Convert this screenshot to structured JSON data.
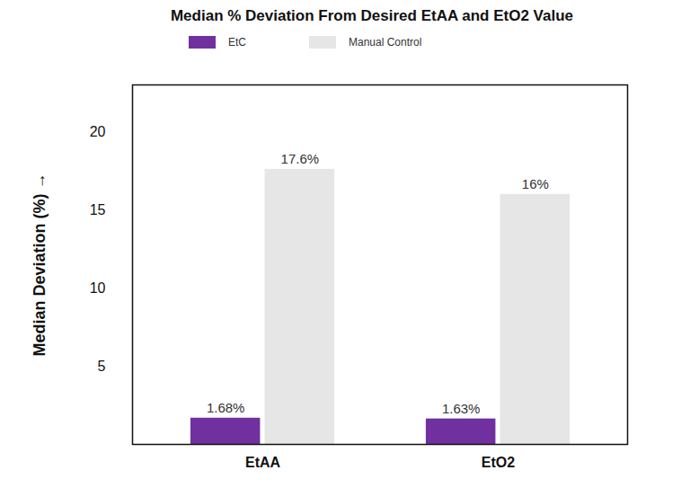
{
  "chart_data": {
    "type": "bar",
    "title": "Median % Deviation From Desired EtAA and EtO2 Value",
    "categories": [
      "EtAA",
      "EtO2"
    ],
    "series": [
      {
        "name": "EtC",
        "color": "#7030a0",
        "values": [
          1.68,
          1.63
        ],
        "value_labels": [
          "1.68%",
          "1.63%"
        ]
      },
      {
        "name": "Manual Control",
        "color": "#e6e6e6",
        "values": [
          17.6,
          16
        ],
        "value_labels": [
          "17.6%",
          "16%"
        ]
      }
    ],
    "y_label": "Median Deviation (%)",
    "ylim": [
      0,
      23
    ],
    "yticks": [
      5,
      10,
      15,
      20
    ],
    "grid": false,
    "legend": "top",
    "data_labels": true
  }
}
